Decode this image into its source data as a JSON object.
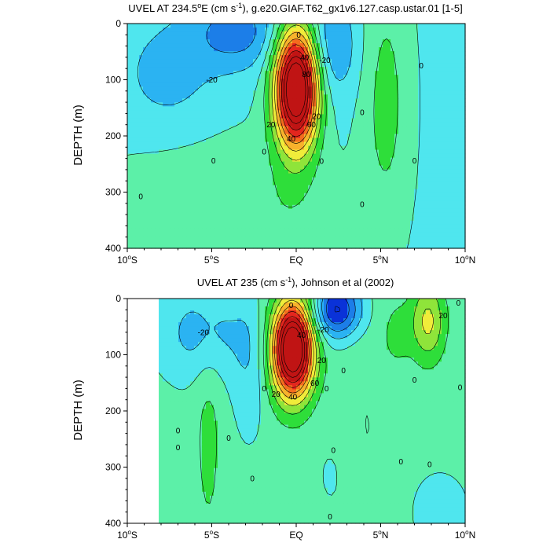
{
  "figure": {
    "palette": [
      "#0a32d8",
      "#1c7ee8",
      "#2bb3f2",
      "#4fe6ee",
      "#5cf0a8",
      "#2ede3a",
      "#8fe43a",
      "#f0ec3a",
      "#f8b22c",
      "#f46c1e",
      "#e4261e",
      "#c01414"
    ],
    "levels": [
      -40,
      -30,
      -20,
      -10,
      0,
      10,
      20,
      30,
      40,
      50,
      60,
      70,
      80,
      90
    ]
  },
  "chart_data": [
    {
      "type": "contour",
      "title": "UVEL AT 234.5°E (cm s⁻¹), g.e20.GIAF.T62_gx1v6.127.casp.ustar.01 [1-5]",
      "title_parts": [
        "UVEL AT 234.5",
        "o",
        "E (cm s",
        "-1",
        "), g.e20.GIAF.T62_gx1v6.127.casp.ustar.01 [1-5]"
      ],
      "xlabel": "",
      "ylabel": "DEPTH (m)",
      "xlim": [
        -10,
        10
      ],
      "ylim": [
        400,
        0
      ],
      "x_ticks": [
        {
          "value": -10,
          "num": "10",
          "deg": "o",
          "hemi": "S"
        },
        {
          "value": -5,
          "num": "5",
          "deg": "o",
          "hemi": "S"
        },
        {
          "value": 0,
          "num": "EQ",
          "deg": "",
          "hemi": ""
        },
        {
          "value": 5,
          "num": "5",
          "deg": "o",
          "hemi": "N"
        },
        {
          "value": 10,
          "num": "10",
          "deg": "o",
          "hemi": "N"
        }
      ],
      "y_ticks": [
        "0",
        "100",
        "200",
        "300",
        "400"
      ],
      "y_tick_values": [
        0,
        100,
        200,
        300,
        400
      ],
      "features": [
        {
          "x": 0,
          "z": 115,
          "sx": 0.9,
          "sz": 75,
          "amp": 115
        },
        {
          "x": -3.5,
          "z": 15,
          "sx": 1.8,
          "sz": 45,
          "amp": -22
        },
        {
          "x": -7.5,
          "z": 100,
          "sx": 2.2,
          "sz": 80,
          "amp": -12
        },
        {
          "x": 2.2,
          "z": 40,
          "sx": 1.0,
          "sz": 60,
          "amp": -18
        },
        {
          "x": 5.3,
          "z": 140,
          "sx": 1.1,
          "sz": 180,
          "amp": 16
        },
        {
          "x": -6,
          "z": 380,
          "sx": 4,
          "sz": 150,
          "amp": 12
        },
        {
          "x": 0,
          "z": 330,
          "sx": 2,
          "sz": 80,
          "amp": 7
        }
      ],
      "baseline": -3,
      "contour_labels": [
        {
          "x": 0.15,
          "z": 20,
          "text": "0"
        },
        {
          "x": -5,
          "z": 100,
          "text": "-20"
        },
        {
          "x": 1.7,
          "z": 65,
          "text": "-20"
        },
        {
          "x": 0.5,
          "z": 60,
          "text": "40"
        },
        {
          "x": 0.6,
          "z": 90,
          "text": "80"
        },
        {
          "x": 1.2,
          "z": 165,
          "text": "20"
        },
        {
          "x": 0.9,
          "z": 180,
          "text": "60"
        },
        {
          "x": -1.5,
          "z": 180,
          "text": "20"
        },
        {
          "x": -0.3,
          "z": 205,
          "text": "40"
        },
        {
          "x": -1.9,
          "z": 228,
          "text": "0"
        },
        {
          "x": -4.9,
          "z": 244,
          "text": "0"
        },
        {
          "x": -9.2,
          "z": 308,
          "text": "0"
        },
        {
          "x": 1.5,
          "z": 245,
          "text": "0"
        },
        {
          "x": 3.9,
          "z": 158,
          "text": "0"
        },
        {
          "x": 3.9,
          "z": 322,
          "text": "0"
        },
        {
          "x": 7.0,
          "z": 244,
          "text": "0"
        },
        {
          "x": 7.4,
          "z": 75,
          "text": "0"
        }
      ]
    },
    {
      "type": "contour",
      "title": "UVEL AT 235 (cm s⁻¹), Johnson et al (2002)",
      "title_parts": [
        "UVEL AT 235 (cm s",
        "-1",
        "), Johnson et al (2002)"
      ],
      "xlabel": "",
      "ylabel": "DEPTH (m)",
      "xlim": [
        -10,
        10
      ],
      "ylim": [
        400,
        0
      ],
      "x_ticks": [
        {
          "value": -10,
          "num": "10",
          "deg": "o",
          "hemi": "S"
        },
        {
          "value": -5,
          "num": "5",
          "deg": "o",
          "hemi": "S"
        },
        {
          "value": 0,
          "num": "EQ",
          "deg": "",
          "hemi": ""
        },
        {
          "value": 5,
          "num": "5",
          "deg": "o",
          "hemi": "N"
        },
        {
          "value": 10,
          "num": "10",
          "deg": "o",
          "hemi": "N"
        }
      ],
      "y_ticks": [
        "0",
        "100",
        "200",
        "300",
        "400"
      ],
      "y_tick_values": [
        0,
        100,
        200,
        300,
        400
      ],
      "data_extent": [
        -8.1,
        10
      ],
      "features": [
        {
          "x": -0.2,
          "z": 90,
          "sx": 0.85,
          "sz": 60,
          "amp": 110
        },
        {
          "x": 2.4,
          "z": 20,
          "sx": 1.0,
          "sz": 35,
          "amp": -45
        },
        {
          "x": -5.5,
          "z": 60,
          "sx": 1.8,
          "sz": 60,
          "amp": -18
        },
        {
          "x": -2.8,
          "z": 120,
          "sx": 0.7,
          "sz": 90,
          "amp": -10
        },
        {
          "x": 7.8,
          "z": 40,
          "sx": 0.7,
          "sz": 50,
          "amp": 30
        },
        {
          "x": 6.0,
          "z": 60,
          "sx": 0.6,
          "sz": 40,
          "amp": 10
        },
        {
          "x": -5.2,
          "z": 240,
          "sx": 0.6,
          "sz": 150,
          "amp": 10
        },
        {
          "x": 4.0,
          "z": 250,
          "sx": 1.2,
          "sz": 130,
          "amp": 8
        },
        {
          "x": 2.5,
          "z": 310,
          "sx": 1.0,
          "sz": 70,
          "amp": -6
        },
        {
          "x": -1.6,
          "z": 380,
          "sx": 0.9,
          "sz": 30,
          "amp": 7
        },
        {
          "x": 8.5,
          "z": 380,
          "sx": 1.2,
          "sz": 50,
          "amp": -8
        }
      ],
      "baseline": 3,
      "contour_labels": [
        {
          "x": -0.3,
          "z": 12,
          "text": "0"
        },
        {
          "x": -5.5,
          "z": 60,
          "text": "-20"
        },
        {
          "x": 1.6,
          "z": 55,
          "text": "-20"
        },
        {
          "x": 0.3,
          "z": 65,
          "text": "40"
        },
        {
          "x": 1.5,
          "z": 110,
          "text": "20"
        },
        {
          "x": 1.1,
          "z": 150,
          "text": "60"
        },
        {
          "x": -1.2,
          "z": 170,
          "text": "20"
        },
        {
          "x": -0.2,
          "z": 175,
          "text": "40"
        },
        {
          "x": -1.9,
          "z": 160,
          "text": "0"
        },
        {
          "x": 1.8,
          "z": 160,
          "text": "0"
        },
        {
          "x": 2.8,
          "z": 128,
          "text": "0"
        },
        {
          "x": -7.0,
          "z": 235,
          "text": "0"
        },
        {
          "x": -4.0,
          "z": 248,
          "text": "0"
        },
        {
          "x": -7.0,
          "z": 265,
          "text": "0"
        },
        {
          "x": -2.6,
          "z": 320,
          "text": "0"
        },
        {
          "x": 2.2,
          "z": 270,
          "text": "0"
        },
        {
          "x": 7.0,
          "z": 145,
          "text": "0"
        },
        {
          "x": 9.7,
          "z": 158,
          "text": "0"
        },
        {
          "x": 6.2,
          "z": 290,
          "text": "0"
        },
        {
          "x": 7.9,
          "z": 295,
          "text": "0"
        },
        {
          "x": 8.7,
          "z": 30,
          "text": "20"
        },
        {
          "x": 9.6,
          "z": 8,
          "text": "0"
        },
        {
          "x": 2.0,
          "z": 388,
          "text": "0"
        }
      ]
    }
  ]
}
